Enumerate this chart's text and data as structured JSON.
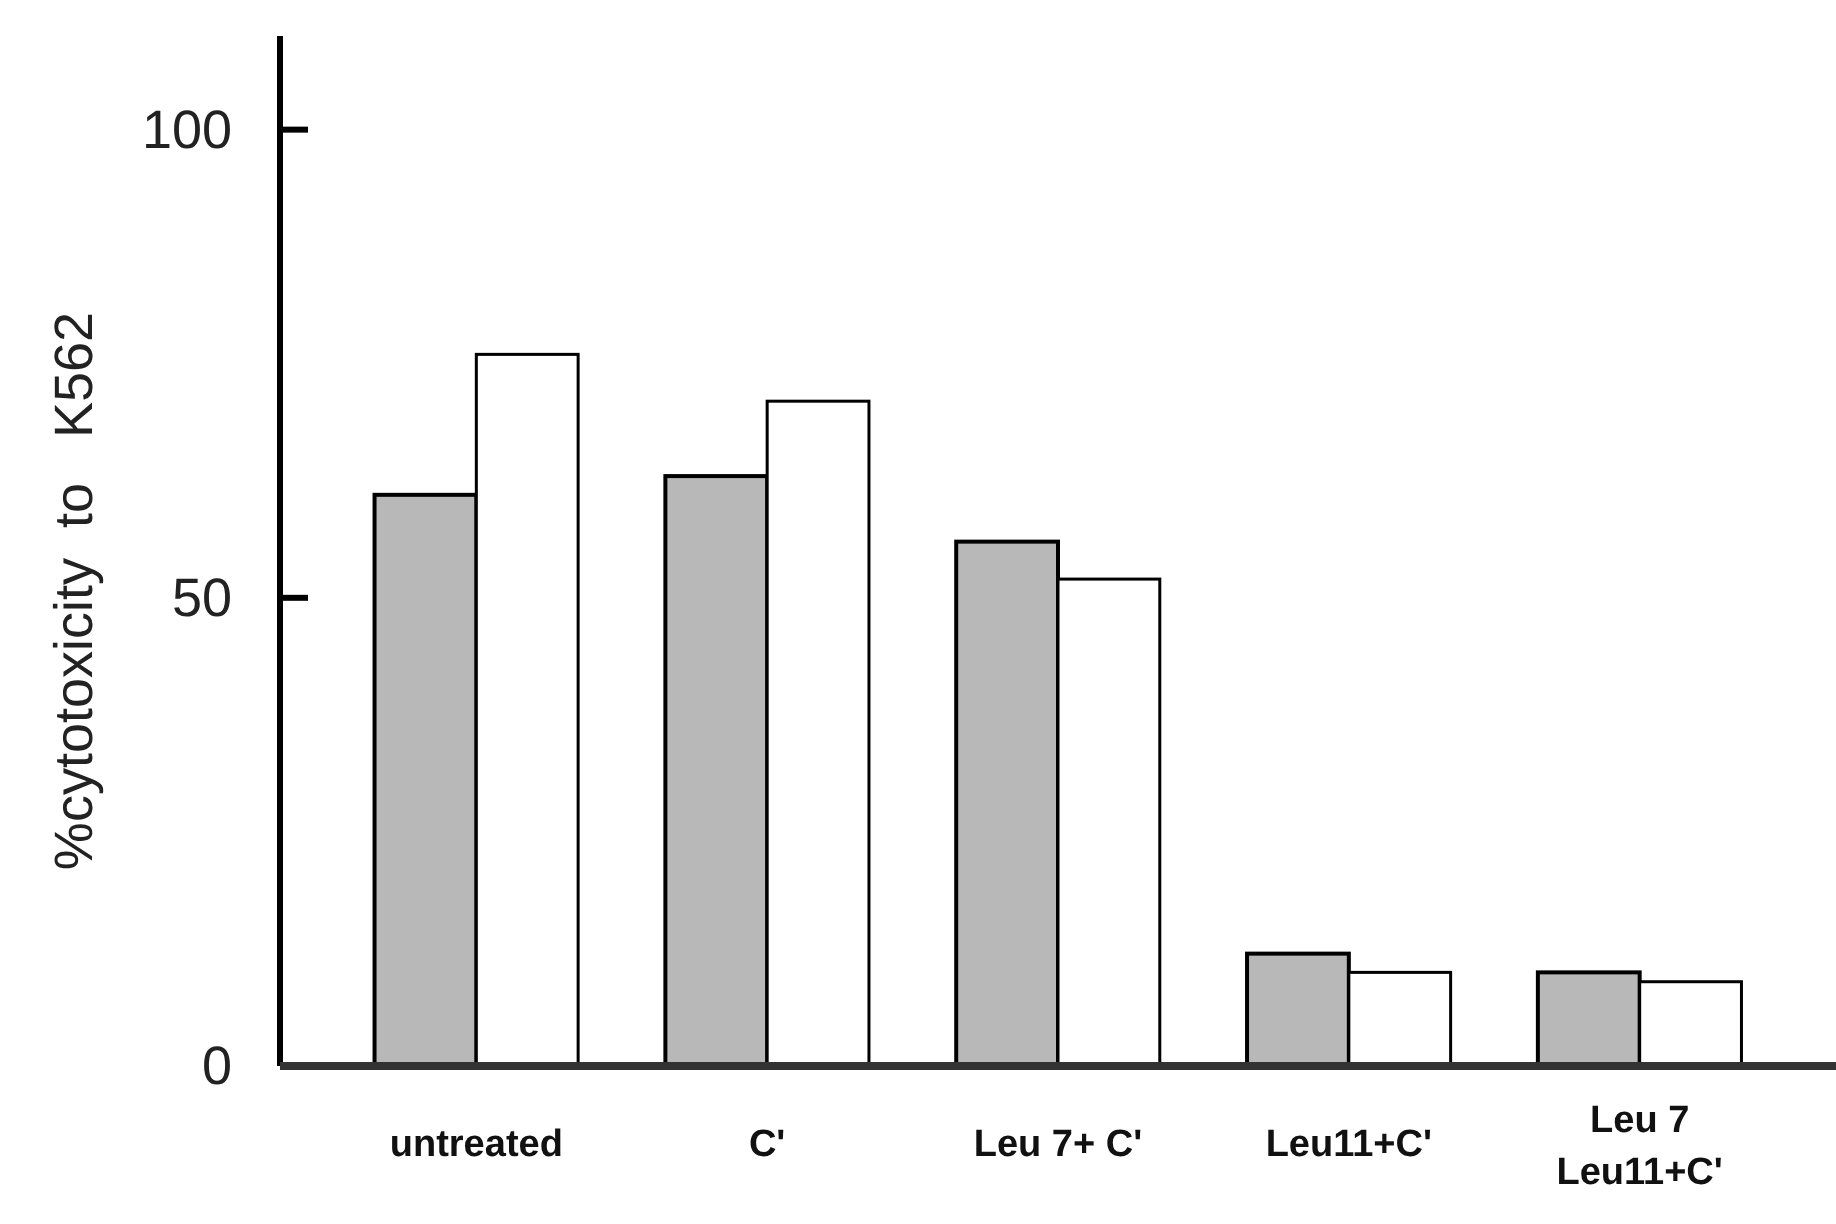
{
  "chart_data": {
    "type": "bar",
    "ylabel": "%cytotoxicity  to   K562",
    "categories": [
      "untreated",
      "C'",
      "Leu 7+ C'",
      "Leu11+C'",
      "Leu 7\nLeu11+C'"
    ],
    "series": [
      {
        "color": "#b8b8b8",
        "values": [
          61,
          63,
          56,
          12,
          10
        ]
      },
      {
        "color": "#ffffff",
        "values": [
          76,
          71,
          52,
          10,
          9
        ]
      }
    ],
    "ylim": [
      0,
      110
    ],
    "yticks": [
      0,
      50,
      100
    ]
  }
}
